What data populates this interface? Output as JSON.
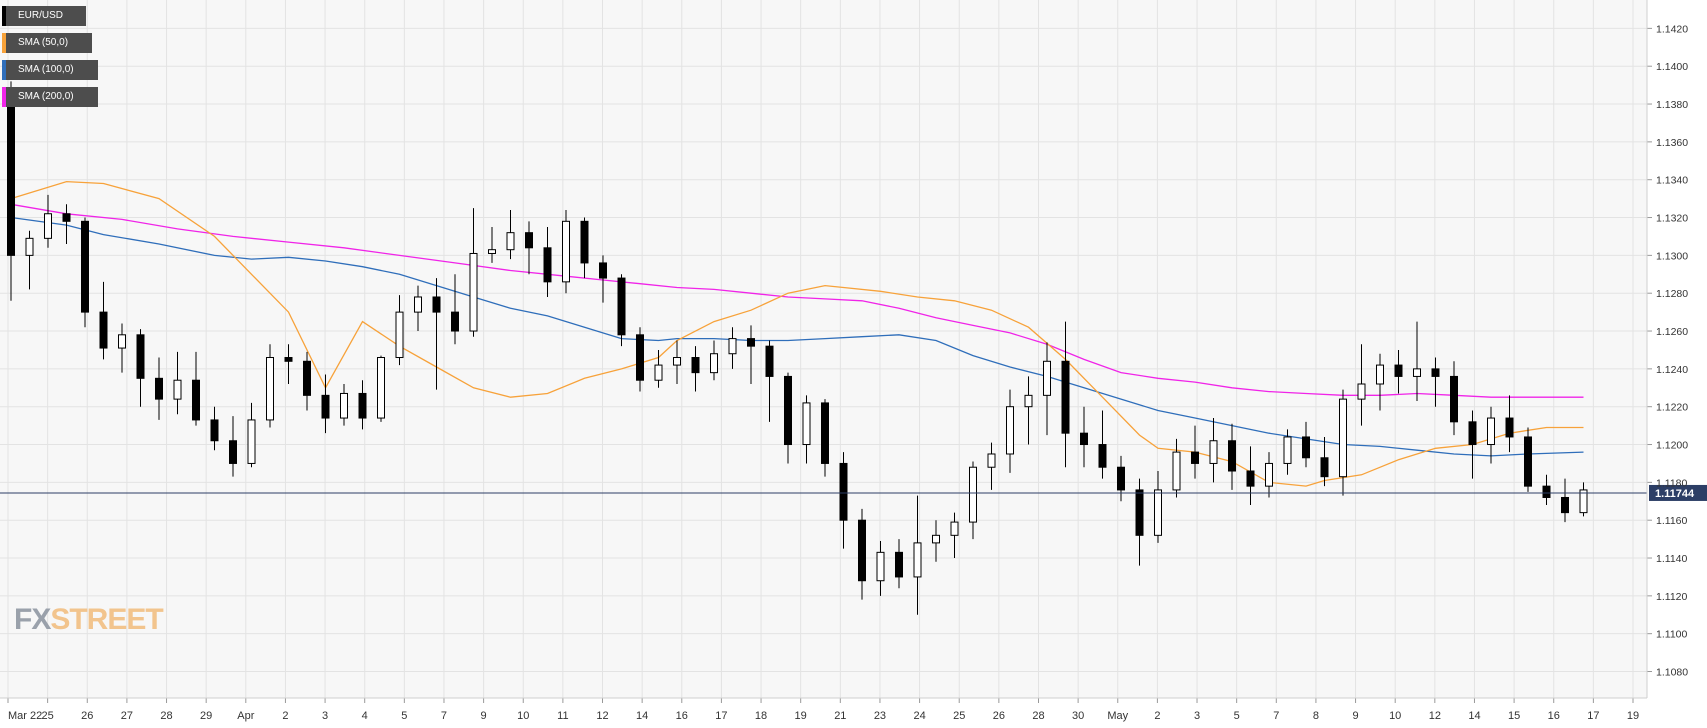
{
  "legend": {
    "instrument": "EUR/USD",
    "sma50": "SMA (50,0)",
    "sma100": "SMA (100,0)",
    "sma200": "SMA (200,0)"
  },
  "colors": {
    "background": "#f7f7f7",
    "grid": "#e3e3e3",
    "sma50": "#f7a23a",
    "sma100": "#2f6eba",
    "sma200": "#f024e8",
    "candle_up": "#ffffff",
    "candle_down": "#000000",
    "price_line": "#2c3e66"
  },
  "logo": {
    "part1": "FX",
    "part2": "STREET"
  },
  "chart_data": {
    "type": "candlestick",
    "title": "EUR/USD",
    "ylim": [
      1.1066,
      1.1435
    ],
    "y_ticks": [
      "1.1080",
      "1.1100",
      "1.1120",
      "1.1140",
      "1.1160",
      "1.1180",
      "1.1200",
      "1.1220",
      "1.1240",
      "1.1260",
      "1.1280",
      "1.1300",
      "1.1320",
      "1.1340",
      "1.1360",
      "1.1380",
      "1.1400",
      "1.1420"
    ],
    "x_ticks": [
      "Mar 22",
      "25",
      "26",
      "27",
      "28",
      "29",
      "Apr",
      "2",
      "3",
      "4",
      "5",
      "7",
      "9",
      "10",
      "11",
      "12",
      "14",
      "16",
      "17",
      "18",
      "19",
      "21",
      "23",
      "24",
      "25",
      "26",
      "28",
      "30",
      "May",
      "2",
      "3",
      "5",
      "7",
      "8",
      "9",
      "10",
      "12",
      "14",
      "15",
      "16",
      "17",
      "19"
    ],
    "current_price": "1.11744",
    "current_value": 1.11744,
    "sma50": [
      [
        0,
        1.133
      ],
      [
        3,
        1.1339
      ],
      [
        5,
        1.1338
      ],
      [
        8,
        1.133
      ],
      [
        11,
        1.131
      ],
      [
        13,
        1.129
      ],
      [
        15,
        1.127
      ],
      [
        17,
        1.123
      ],
      [
        19,
        1.1265
      ],
      [
        21,
        1.1252
      ],
      [
        23,
        1.1241
      ],
      [
        25,
        1.123
      ],
      [
        27,
        1.1225
      ],
      [
        29,
        1.1227
      ],
      [
        31,
        1.1235
      ],
      [
        33,
        1.124
      ],
      [
        35,
        1.1246
      ],
      [
        36,
        1.1255
      ],
      [
        38,
        1.1265
      ],
      [
        40,
        1.1271
      ],
      [
        42,
        1.128
      ],
      [
        44,
        1.1284
      ],
      [
        45,
        1.1283
      ],
      [
        47,
        1.1281
      ],
      [
        49,
        1.1278
      ],
      [
        51,
        1.1276
      ],
      [
        53,
        1.1271
      ],
      [
        55,
        1.1262
      ],
      [
        57,
        1.1245
      ],
      [
        59,
        1.1225
      ],
      [
        61,
        1.1205
      ],
      [
        62,
        1.1198
      ],
      [
        64,
        1.1196
      ],
      [
        66,
        1.1191
      ],
      [
        68,
        1.118
      ],
      [
        70,
        1.1178
      ],
      [
        71,
        1.1181
      ],
      [
        73,
        1.1184
      ],
      [
        75,
        1.1192
      ],
      [
        77,
        1.1198
      ],
      [
        79,
        1.12
      ],
      [
        81,
        1.1206
      ],
      [
        83,
        1.1209
      ],
      [
        85,
        1.1209
      ]
    ],
    "sma100": [
      [
        0,
        1.132
      ],
      [
        3,
        1.1316
      ],
      [
        5,
        1.1311
      ],
      [
        8,
        1.1306
      ],
      [
        11,
        1.13
      ],
      [
        13,
        1.1298
      ],
      [
        15,
        1.1299
      ],
      [
        17,
        1.1297
      ],
      [
        19,
        1.1294
      ],
      [
        21,
        1.129
      ],
      [
        23,
        1.1284
      ],
      [
        25,
        1.1278
      ],
      [
        27,
        1.1272
      ],
      [
        29,
        1.1268
      ],
      [
        31,
        1.1262
      ],
      [
        33,
        1.1256
      ],
      [
        35,
        1.1255
      ],
      [
        36,
        1.1256
      ],
      [
        38,
        1.1256
      ],
      [
        40,
        1.1255
      ],
      [
        42,
        1.1255
      ],
      [
        44,
        1.1256
      ],
      [
        46,
        1.1257
      ],
      [
        48,
        1.1258
      ],
      [
        50,
        1.1255
      ],
      [
        52,
        1.1247
      ],
      [
        54,
        1.1241
      ],
      [
        56,
        1.1236
      ],
      [
        58,
        1.123
      ],
      [
        60,
        1.1224
      ],
      [
        62,
        1.1218
      ],
      [
        64,
        1.1214
      ],
      [
        66,
        1.121
      ],
      [
        68,
        1.1206
      ],
      [
        70,
        1.1203
      ],
      [
        72,
        1.12
      ],
      [
        74,
        1.1199
      ],
      [
        76,
        1.1197
      ],
      [
        78,
        1.1195
      ],
      [
        80,
        1.1194
      ],
      [
        82,
        1.1195
      ],
      [
        85,
        1.1196
      ]
    ],
    "sma200": [
      [
        0,
        1.1327
      ],
      [
        3,
        1.1322
      ],
      [
        6,
        1.1319
      ],
      [
        9,
        1.1314
      ],
      [
        12,
        1.131
      ],
      [
        15,
        1.1307
      ],
      [
        18,
        1.1304
      ],
      [
        21,
        1.13
      ],
      [
        24,
        1.1296
      ],
      [
        27,
        1.1292
      ],
      [
        30,
        1.1289
      ],
      [
        32,
        1.1287
      ],
      [
        34,
        1.1285
      ],
      [
        36,
        1.1283
      ],
      [
        38,
        1.1282
      ],
      [
        40,
        1.128
      ],
      [
        42,
        1.1278
      ],
      [
        44,
        1.1277
      ],
      [
        46,
        1.1276
      ],
      [
        48,
        1.1272
      ],
      [
        50,
        1.1267
      ],
      [
        52,
        1.1263
      ],
      [
        54,
        1.1259
      ],
      [
        56,
        1.1253
      ],
      [
        58,
        1.1245
      ],
      [
        60,
        1.1238
      ],
      [
        62,
        1.1235
      ],
      [
        64,
        1.1233
      ],
      [
        66,
        1.123
      ],
      [
        68,
        1.1228
      ],
      [
        70,
        1.1227
      ],
      [
        72,
        1.1226
      ],
      [
        74,
        1.1226
      ],
      [
        76,
        1.1227
      ],
      [
        78,
        1.1226
      ],
      [
        80,
        1.1225
      ],
      [
        82,
        1.1225
      ],
      [
        85,
        1.1225
      ]
    ],
    "candles_ohlc": [
      [
        1.138,
        1.1392,
        1.1276,
        1.13
      ],
      [
        1.13,
        1.1313,
        1.1282,
        1.1309
      ],
      [
        1.1309,
        1.1332,
        1.1304,
        1.1322
      ],
      [
        1.1322,
        1.1327,
        1.1306,
        1.1318
      ],
      [
        1.1318,
        1.132,
        1.1262,
        1.127
      ],
      [
        1.127,
        1.1286,
        1.1245,
        1.1251
      ],
      [
        1.1251,
        1.1264,
        1.1238,
        1.1258
      ],
      [
        1.1258,
        1.1261,
        1.122,
        1.1235
      ],
      [
        1.1235,
        1.1246,
        1.1213,
        1.1224
      ],
      [
        1.1224,
        1.1249,
        1.1216,
        1.1234
      ],
      [
        1.1234,
        1.1249,
        1.121,
        1.1213
      ],
      [
        1.1213,
        1.122,
        1.1197,
        1.1202
      ],
      [
        1.1202,
        1.1215,
        1.1183,
        1.119
      ],
      [
        1.119,
        1.1222,
        1.1188,
        1.1213
      ],
      [
        1.1213,
        1.1253,
        1.1209,
        1.1246
      ],
      [
        1.1246,
        1.1253,
        1.1232,
        1.1244
      ],
      [
        1.1244,
        1.1249,
        1.1218,
        1.1226
      ],
      [
        1.1226,
        1.1237,
        1.1206,
        1.1214
      ],
      [
        1.1214,
        1.1232,
        1.121,
        1.1227
      ],
      [
        1.1227,
        1.1234,
        1.1208,
        1.1214
      ],
      [
        1.1214,
        1.1247,
        1.1212,
        1.1246
      ],
      [
        1.1246,
        1.1279,
        1.1242,
        1.127
      ],
      [
        1.127,
        1.1284,
        1.126,
        1.1278
      ],
      [
        1.1278,
        1.1288,
        1.1229,
        1.127
      ],
      [
        1.127,
        1.129,
        1.1253,
        1.126
      ],
      [
        1.126,
        1.1325,
        1.1257,
        1.1301
      ],
      [
        1.1301,
        1.1315,
        1.1296,
        1.1303
      ],
      [
        1.1303,
        1.1324,
        1.1298,
        1.1312
      ],
      [
        1.1312,
        1.1318,
        1.129,
        1.1304
      ],
      [
        1.1304,
        1.1315,
        1.1278,
        1.1286
      ],
      [
        1.1286,
        1.1324,
        1.128,
        1.1318
      ],
      [
        1.1318,
        1.132,
        1.1288,
        1.1296
      ],
      [
        1.1296,
        1.13,
        1.1275,
        1.1288
      ],
      [
        1.1288,
        1.129,
        1.1252,
        1.1258
      ],
      [
        1.1258,
        1.1262,
        1.1228,
        1.1234
      ],
      [
        1.1234,
        1.125,
        1.123,
        1.1242
      ],
      [
        1.1242,
        1.1255,
        1.1232,
        1.1246
      ],
      [
        1.1246,
        1.1252,
        1.1228,
        1.1238
      ],
      [
        1.1238,
        1.1255,
        1.1234,
        1.1248
      ],
      [
        1.1248,
        1.1262,
        1.124,
        1.1256
      ],
      [
        1.1256,
        1.1263,
        1.1232,
        1.1252
      ],
      [
        1.1252,
        1.1255,
        1.1212,
        1.1236
      ],
      [
        1.1236,
        1.1238,
        1.119,
        1.12
      ],
      [
        1.12,
        1.1226,
        1.119,
        1.1222
      ],
      [
        1.1222,
        1.1224,
        1.1183,
        1.119
      ],
      [
        1.119,
        1.1196,
        1.1145,
        1.116
      ],
      [
        1.116,
        1.1166,
        1.1118,
        1.1128
      ],
      [
        1.1128,
        1.1149,
        1.112,
        1.1143
      ],
      [
        1.1143,
        1.115,
        1.1124,
        1.113
      ],
      [
        1.113,
        1.1173,
        1.111,
        1.1148
      ],
      [
        1.1148,
        1.116,
        1.1138,
        1.1152
      ],
      [
        1.1152,
        1.1164,
        1.114,
        1.1159
      ],
      [
        1.1159,
        1.1191,
        1.115,
        1.1188
      ],
      [
        1.1188,
        1.1201,
        1.1176,
        1.1195
      ],
      [
        1.1195,
        1.1229,
        1.1185,
        1.122
      ],
      [
        1.122,
        1.1236,
        1.12,
        1.1226
      ],
      [
        1.1226,
        1.1254,
        1.1205,
        1.1244
      ],
      [
        1.1244,
        1.1265,
        1.1188,
        1.1206
      ],
      [
        1.1206,
        1.122,
        1.1188,
        1.12
      ],
      [
        1.12,
        1.1218,
        1.1182,
        1.1188
      ],
      [
        1.1188,
        1.1194,
        1.117,
        1.1176
      ],
      [
        1.1176,
        1.1182,
        1.1136,
        1.1152
      ],
      [
        1.1152,
        1.1186,
        1.1148,
        1.1176
      ],
      [
        1.1176,
        1.1203,
        1.1172,
        1.1196
      ],
      [
        1.1196,
        1.121,
        1.1182,
        1.119
      ],
      [
        1.119,
        1.1214,
        1.118,
        1.1202
      ],
      [
        1.1202,
        1.1211,
        1.1176,
        1.1186
      ],
      [
        1.1186,
        1.1199,
        1.1168,
        1.1178
      ],
      [
        1.1178,
        1.1196,
        1.1172,
        1.119
      ],
      [
        1.119,
        1.1208,
        1.1184,
        1.1204
      ],
      [
        1.1204,
        1.1212,
        1.1188,
        1.1193
      ],
      [
        1.1193,
        1.1204,
        1.1178,
        1.1183
      ],
      [
        1.1183,
        1.1229,
        1.1173,
        1.1224
      ],
      [
        1.1224,
        1.1253,
        1.121,
        1.1232
      ],
      [
        1.1232,
        1.1248,
        1.1218,
        1.1242
      ],
      [
        1.1242,
        1.125,
        1.1227,
        1.1236
      ],
      [
        1.1236,
        1.1265,
        1.1223,
        1.124
      ],
      [
        1.124,
        1.1246,
        1.122,
        1.1236
      ],
      [
        1.1236,
        1.1244,
        1.1205,
        1.1212
      ],
      [
        1.1212,
        1.1218,
        1.1182,
        1.12
      ],
      [
        1.12,
        1.122,
        1.119,
        1.1214
      ],
      [
        1.1214,
        1.1226,
        1.1196,
        1.1204
      ],
      [
        1.1204,
        1.1209,
        1.1175,
        1.1178
      ],
      [
        1.1178,
        1.1184,
        1.1168,
        1.1172
      ],
      [
        1.1172,
        1.1182,
        1.1159,
        1.1164
      ],
      [
        1.1164,
        1.118,
        1.1162,
        1.1176
      ]
    ]
  }
}
